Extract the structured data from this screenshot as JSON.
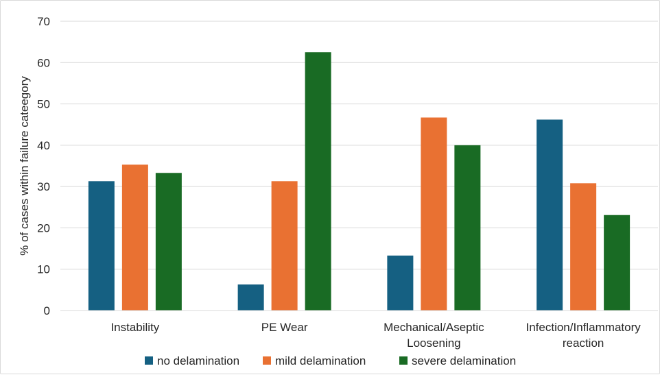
{
  "chart_data": {
    "type": "bar",
    "title": "",
    "xlabel": "",
    "ylabel": "% of cases within failure cateegory",
    "ylim": [
      0,
      70
    ],
    "yticks": [
      0,
      10,
      20,
      30,
      40,
      50,
      60,
      70
    ],
    "grid": true,
    "legend_position": "bottom",
    "categories": [
      [
        "Instability"
      ],
      [
        "PE Wear"
      ],
      [
        "Mechanical/Aseptic",
        "Loosening"
      ],
      [
        "Infection/Inflammatory",
        "reaction"
      ]
    ],
    "series": [
      {
        "name": "no delamination",
        "color": "#156082",
        "values": [
          31.3,
          6.3,
          13.3,
          46.2
        ]
      },
      {
        "name": "mild delamination",
        "color": "#e97132",
        "values": [
          35.3,
          31.3,
          46.7,
          30.8
        ]
      },
      {
        "name": "severe delamination",
        "color": "#196b24",
        "values": [
          33.3,
          62.5,
          40.0,
          23.1
        ]
      }
    ]
  }
}
